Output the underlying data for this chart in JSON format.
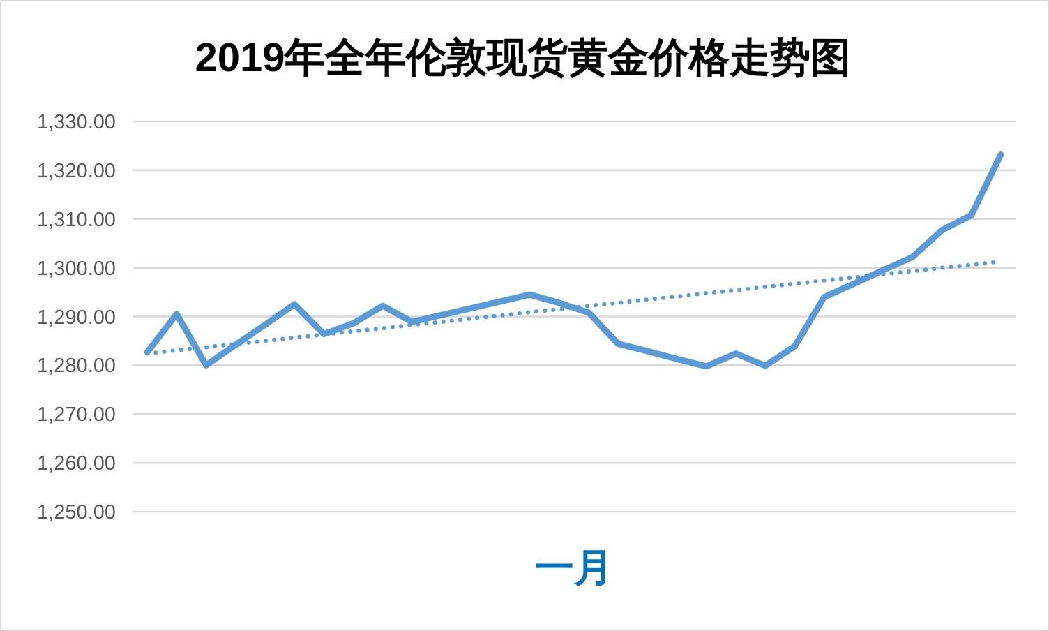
{
  "chart_data": {
    "type": "line",
    "title": "2019年全年伦敦现货黄金价格走势图",
    "xlabel": "一月",
    "categories": [
      null,
      null,
      null,
      null,
      null,
      null,
      null,
      null,
      null,
      null,
      null,
      null,
      null,
      null,
      null,
      null,
      null,
      null,
      null,
      null,
      null,
      null,
      null,
      null,
      null,
      null,
      null,
      null,
      null,
      null
    ],
    "series": [
      {
        "color": "#5b9bd5",
        "line_style": "solid",
        "values": [
          1282.7,
          1290.5,
          1280.0,
          1284.2,
          1288.3,
          1292.5,
          1286.4,
          1288.6,
          1292.2,
          1288.9,
          1290.3,
          1291.7,
          1293.1,
          1294.5,
          1292.8,
          1290.8,
          1284.4,
          1282.9,
          1281.3,
          1279.8,
          1282.4,
          1279.9,
          1283.9,
          1294.0,
          1296.7,
          1299.5,
          1302.2,
          1307.7,
          1310.8,
          1323.2
        ]
      },
      {
        "type": "line",
        "color": "#5b9bd5",
        "line_style": "dotted",
        "values": [
          1282.4,
          1283.1,
          1283.7,
          1284.4,
          1285.0,
          1285.7,
          1286.3,
          1287.0,
          1287.6,
          1288.3,
          1288.9,
          1289.6,
          1290.2,
          1290.9,
          1291.5,
          1292.2,
          1292.8,
          1293.5,
          1294.1,
          1294.8,
          1295.4,
          1296.1,
          1296.7,
          1297.4,
          1298.0,
          1298.7,
          1299.3,
          1300.0,
          1300.6,
          1301.3
        ]
      }
    ],
    "ylim": [
      1250,
      1330
    ],
    "yticks": [
      {
        "value": 1250,
        "label": "1,250.00"
      },
      {
        "value": 1260,
        "label": "1,260.00"
      },
      {
        "value": 1270,
        "label": "1,270.00"
      },
      {
        "value": 1280,
        "label": "1,280.00"
      },
      {
        "value": 1290,
        "label": "1,290.00"
      },
      {
        "value": 1300,
        "label": "1,300.00"
      },
      {
        "value": 1310,
        "label": "1,310.00"
      },
      {
        "value": 1320,
        "label": "1,320.00"
      },
      {
        "value": 1330,
        "label": "1,330.00"
      }
    ],
    "grid": "y",
    "tick_labels": "y"
  }
}
